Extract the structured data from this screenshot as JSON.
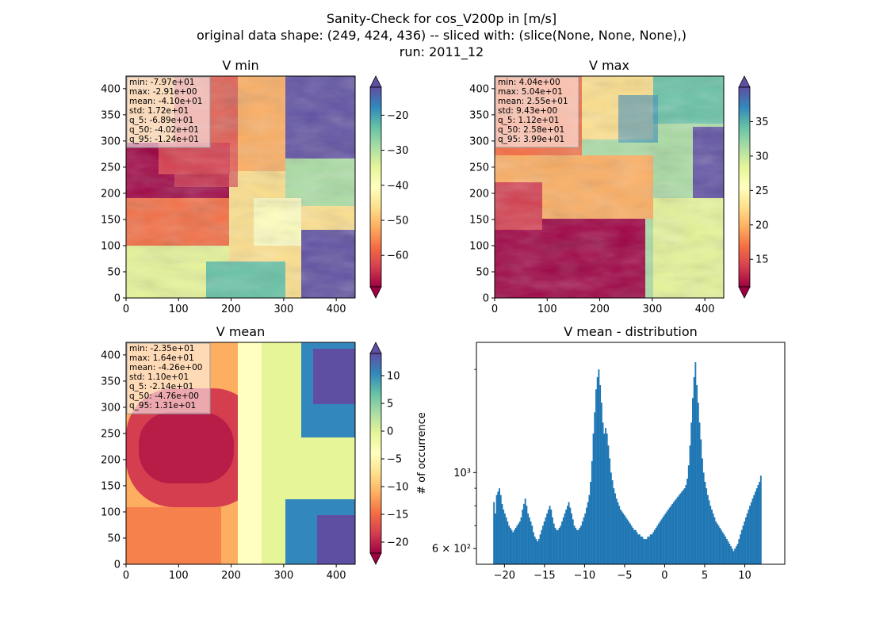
{
  "figure": {
    "title_lines": [
      "Sanity-Check for cos_V200p in [m/s]",
      "original data shape: (249, 424, 436) -- sliced with: (slice(None, None, None),)",
      "run: 2011_12"
    ]
  },
  "colormap": {
    "name": "Spectral",
    "stops": [
      "#9e0142",
      "#d53e4f",
      "#f46d43",
      "#fdae61",
      "#fee08b",
      "#ffffbf",
      "#e6f598",
      "#abdda4",
      "#66c2a5",
      "#3288bd",
      "#5e4fa2"
    ]
  },
  "chart_data": [
    {
      "type": "heatmap",
      "title": "V min",
      "xlim": [
        0,
        436
      ],
      "ylim": [
        0,
        424
      ],
      "xticks": [
        0,
        100,
        200,
        300,
        400
      ],
      "yticks": [
        0,
        50,
        100,
        150,
        200,
        250,
        300,
        350,
        400
      ],
      "colorbar": {
        "min": -69,
        "max": -12,
        "ticks": [
          -60,
          -50,
          -40,
          -30,
          -20
        ],
        "extend": "both"
      },
      "stats": [
        "min: -7.97e+01",
        "max: -2.91e+00",
        "mean: -4.10e+01",
        "std: 1.72e+01",
        "q_5: -6.89e+01",
        "q_50: -4.02e+01",
        "q_95: -1.24e+01"
      ]
    },
    {
      "type": "heatmap",
      "title": "V max",
      "xlim": [
        0,
        436
      ],
      "ylim": [
        0,
        424
      ],
      "xticks": [
        0,
        100,
        200,
        300,
        400
      ],
      "yticks": [
        0,
        50,
        100,
        150,
        200,
        250,
        300,
        350,
        400
      ],
      "colorbar": {
        "min": 11,
        "max": 40,
        "ticks": [
          15,
          20,
          25,
          30,
          35
        ],
        "extend": "both"
      },
      "stats": [
        "min: 4.04e+00",
        "max: 5.04e+01",
        "mean: 2.55e+01",
        "std: 9.43e+00",
        "q_5: 1.12e+01",
        "q_50: 2.58e+01",
        "q_95: 3.99e+01"
      ]
    },
    {
      "type": "heatmap",
      "title": "V mean",
      "xlim": [
        0,
        436
      ],
      "ylim": [
        0,
        424
      ],
      "xticks": [
        0,
        100,
        200,
        300,
        400
      ],
      "yticks": [
        0,
        50,
        100,
        150,
        200,
        250,
        300,
        350,
        400
      ],
      "colorbar": {
        "min": -22,
        "max": 14,
        "ticks": [
          -20,
          -15,
          -10,
          -5,
          0,
          5,
          10
        ],
        "extend": "both"
      },
      "stats": [
        "min: -2.35e+01",
        "max: 1.64e+01",
        "mean: -4.26e+00",
        "std: 1.10e+01",
        "q_5: -2.14e+01",
        "q_50: -4.76e+00",
        "q_95: 1.31e+01"
      ]
    },
    {
      "type": "bar",
      "title": "V mean - distribution",
      "ylabel": "# of occurrence",
      "xlim": [
        -23.5,
        15.0
      ],
      "ylog": true,
      "ylim": [
        540,
        2400
      ],
      "xticks": [
        -20,
        -15,
        -10,
        -5,
        0,
        5,
        10
      ],
      "yticks_labeled": [
        {
          "value": 600,
          "label": "6 × 10²"
        },
        {
          "value": 1000,
          "label": "10³"
        }
      ],
      "yticks_minor": [
        700,
        800,
        900,
        2000
      ],
      "bar_color": "#1f77b4",
      "bin_start": -21.4,
      "bin_width": 0.17,
      "counts": [
        820,
        760,
        860,
        880,
        900,
        860,
        810,
        780,
        760,
        740,
        720,
        700,
        690,
        680,
        670,
        680,
        690,
        700,
        710,
        720,
        740,
        780,
        810,
        840,
        800,
        760,
        740,
        720,
        700,
        670,
        650,
        640,
        630,
        640,
        660,
        680,
        700,
        720,
        740,
        760,
        780,
        800,
        780,
        740,
        710,
        690,
        680,
        680,
        690,
        700,
        720,
        740,
        760,
        780,
        800,
        820,
        790,
        760,
        730,
        700,
        690,
        680,
        680,
        690,
        700,
        720,
        740,
        760,
        790,
        820,
        860,
        940,
        1080,
        1300,
        1500,
        1750,
        1900,
        2000,
        1800,
        1600,
        1400,
        1300,
        1350,
        1300,
        1200,
        1100,
        1000,
        950,
        900,
        870,
        840,
        820,
        800,
        780,
        770,
        760,
        750,
        740,
        730,
        720,
        710,
        700,
        690,
        680,
        680,
        670,
        660,
        660,
        650,
        650,
        640,
        640,
        640,
        650,
        650,
        660,
        660,
        670,
        680,
        690,
        700,
        710,
        720,
        730,
        740,
        750,
        760,
        770,
        780,
        790,
        800,
        810,
        820,
        830,
        840,
        850,
        860,
        870,
        880,
        890,
        900,
        920,
        960,
        1050,
        1200,
        1400,
        1650,
        1900,
        2100,
        1800,
        1600,
        1400,
        1250,
        1100,
        1000,
        940,
        900,
        860,
        830,
        800,
        780,
        760,
        740,
        720,
        710,
        700,
        690,
        680,
        670,
        660,
        650,
        640,
        630,
        620,
        610,
        600,
        590,
        600,
        610,
        620,
        640,
        660,
        680,
        700,
        720,
        740,
        760,
        780,
        800,
        820,
        840,
        860,
        880,
        900,
        920,
        940,
        980
      ]
    }
  ]
}
